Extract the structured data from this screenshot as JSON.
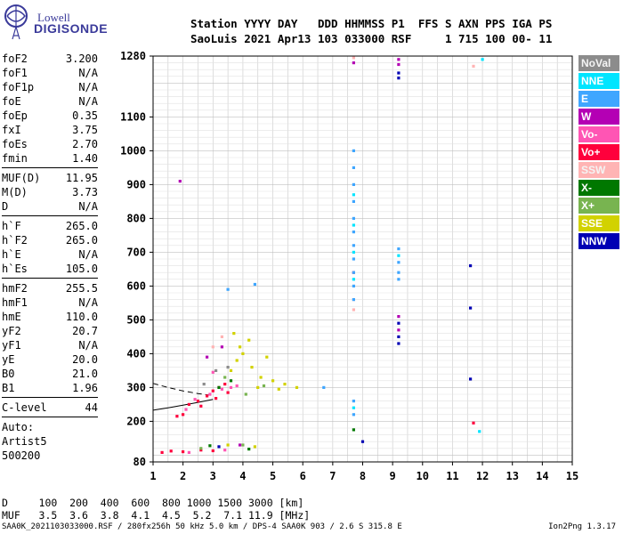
{
  "logo": {
    "line1": "Lowell",
    "line2": "DIGISONDE"
  },
  "header": {
    "line1": "Station YYYY DAY   DDD HHMMSS P1  FFS S AXN PPS IGA PS",
    "line2": "SaoLuis 2021 Apr13 103 033000 RSF     1 715 100 00- 11"
  },
  "params": {
    "group1": [
      {
        "name": "foF2",
        "value": "3.200"
      },
      {
        "name": "foF1",
        "value": "N/A"
      },
      {
        "name": "foF1p",
        "value": "N/A"
      },
      {
        "name": "foE",
        "value": "N/A"
      },
      {
        "name": "foEp",
        "value": "0.35"
      },
      {
        "name": "fxI",
        "value": "3.75"
      },
      {
        "name": "foEs",
        "value": "2.70"
      },
      {
        "name": "fmin",
        "value": "1.40"
      }
    ],
    "group2": [
      {
        "name": "MUF(D)",
        "value": "11.95"
      },
      {
        "name": "M(D)",
        "value": "3.73"
      },
      {
        "name": "D",
        "value": "N/A"
      }
    ],
    "group3": [
      {
        "name": "h`F",
        "value": "265.0"
      },
      {
        "name": "h`F2",
        "value": "265.0"
      },
      {
        "name": "h`E",
        "value": "N/A"
      },
      {
        "name": "h`Es",
        "value": "105.0"
      }
    ],
    "group4": [
      {
        "name": "hmF2",
        "value": "255.5"
      },
      {
        "name": "hmF1",
        "value": "N/A"
      },
      {
        "name": "hmE",
        "value": "110.0"
      },
      {
        "name": "yF2",
        "value": "20.7"
      },
      {
        "name": "yF1",
        "value": "N/A"
      },
      {
        "name": "yE",
        "value": "20.0"
      },
      {
        "name": "B0",
        "value": "21.0"
      },
      {
        "name": "B1",
        "value": "1.96"
      }
    ],
    "group5": [
      {
        "name": "C-level",
        "value": "44"
      }
    ],
    "auto": [
      "Auto:",
      "Artist5",
      "500200"
    ]
  },
  "legend": [
    {
      "label": "NoVal",
      "color": "#8c8c8c"
    },
    {
      "label": "NNE",
      "color": "#00e5ff"
    },
    {
      "label": "E",
      "color": "#3fa6ff"
    },
    {
      "label": "W",
      "color": "#b400b4"
    },
    {
      "label": "Vo-",
      "color": "#ff55b4"
    },
    {
      "label": "Vo+",
      "color": "#ff003c"
    },
    {
      "label": "SSW",
      "color": "#ffb4b4"
    },
    {
      "label": "X-",
      "color": "#007800"
    },
    {
      "label": "X+",
      "color": "#78b450"
    },
    {
      "label": "SSE",
      "color": "#d2d200"
    },
    {
      "label": "NNW",
      "color": "#0000b4"
    }
  ],
  "bottom": {
    "d_row": "D     100  200  400  600  800 1000 1500 3000 [km]",
    "muf_row": "MUF   3.5  3.6  3.8  4.1  4.5  5.2  7.1 11.9 [MHz]"
  },
  "footer": {
    "left": "SAA0K_2021103033000.RSF / 280fx256h 50 kHz 5.0 km / DPS-4 SAA0K 903 / 2.6 S 315.8 E",
    "right": "Ion2Png 1.3.17"
  },
  "chart_data": {
    "type": "scatter",
    "title": "",
    "xlabel": "",
    "ylabel": "",
    "x_range": [
      1,
      15
    ],
    "y_range": [
      80,
      1280
    ],
    "x_ticks": [
      1,
      2,
      3,
      4,
      5,
      6,
      7,
      8,
      9,
      10,
      11,
      12,
      13,
      14,
      15
    ],
    "y_ticks": [
      80,
      200,
      300,
      400,
      500,
      600,
      700,
      800,
      900,
      1000,
      1100,
      1280
    ],
    "grid": true,
    "legend_placement": "right",
    "series": [
      {
        "name": "Vo+",
        "color": "#ff003c",
        "points": [
          [
            2.2,
            250
          ],
          [
            2.5,
            260
          ],
          [
            2.8,
            275
          ],
          [
            3.0,
            290
          ],
          [
            3.2,
            300
          ],
          [
            3.4,
            310
          ],
          [
            2.0,
            220
          ],
          [
            1.8,
            215
          ],
          [
            2.6,
            245
          ],
          [
            3.1,
            268
          ],
          [
            3.5,
            285
          ],
          [
            1.6,
            112
          ],
          [
            2.0,
            110
          ],
          [
            2.6,
            115
          ],
          [
            3.0,
            113
          ],
          [
            1.3,
            108
          ],
          [
            11.7,
            195
          ],
          [
            7.7,
            640
          ]
        ]
      },
      {
        "name": "Vo-",
        "color": "#ff55b4",
        "points": [
          [
            2.4,
            265
          ],
          [
            2.9,
            280
          ],
          [
            3.3,
            295
          ],
          [
            3.6,
            300
          ],
          [
            3.8,
            305
          ],
          [
            2.1,
            235
          ],
          [
            3.0,
            345
          ],
          [
            2.2,
            108
          ],
          [
            3.4,
            115
          ]
        ]
      },
      {
        "name": "SSE",
        "color": "#d2d200",
        "points": [
          [
            3.6,
            350
          ],
          [
            3.8,
            380
          ],
          [
            4.0,
            400
          ],
          [
            4.3,
            360
          ],
          [
            4.6,
            330
          ],
          [
            5.0,
            320
          ],
          [
            5.4,
            310
          ],
          [
            5.8,
            300
          ],
          [
            4.8,
            390
          ],
          [
            3.9,
            420
          ],
          [
            4.2,
            440
          ],
          [
            3.7,
            460
          ],
          [
            4.5,
            300
          ],
          [
            5.2,
            295
          ],
          [
            3.5,
            130
          ],
          [
            4.4,
            125
          ]
        ]
      },
      {
        "name": "SSW",
        "color": "#ffb4b4",
        "points": [
          [
            7.7,
            530
          ],
          [
            7.7,
            560
          ],
          [
            3.0,
            420
          ],
          [
            3.3,
            450
          ],
          [
            7.7,
            1275
          ],
          [
            11.7,
            1250
          ]
        ]
      },
      {
        "name": "E",
        "color": "#3fa6ff",
        "points": [
          [
            7.7,
            1000
          ],
          [
            7.7,
            950
          ],
          [
            7.7,
            900
          ],
          [
            7.7,
            850
          ],
          [
            7.7,
            800
          ],
          [
            7.7,
            760
          ],
          [
            7.7,
            720
          ],
          [
            7.7,
            680
          ],
          [
            7.7,
            640
          ],
          [
            7.7,
            600
          ],
          [
            7.7,
            560
          ],
          [
            7.7,
            260
          ],
          [
            7.7,
            220
          ],
          [
            9.2,
            710
          ],
          [
            9.2,
            670
          ],
          [
            9.2,
            640
          ],
          [
            9.2,
            620
          ],
          [
            3.5,
            590
          ],
          [
            4.4,
            605
          ],
          [
            6.7,
            300
          ]
        ]
      },
      {
        "name": "NNE",
        "color": "#00e5ff",
        "points": [
          [
            7.7,
            870
          ],
          [
            7.7,
            780
          ],
          [
            7.7,
            700
          ],
          [
            7.7,
            620
          ],
          [
            7.7,
            240
          ],
          [
            9.2,
            690
          ],
          [
            11.9,
            170
          ],
          [
            12.0,
            1270
          ]
        ]
      },
      {
        "name": "W",
        "color": "#b400b4",
        "points": [
          [
            9.2,
            1270
          ],
          [
            9.2,
            1255
          ],
          [
            9.2,
            510
          ],
          [
            9.2,
            470
          ],
          [
            3.3,
            420
          ],
          [
            2.8,
            390
          ],
          [
            3.9,
            130
          ],
          [
            1.9,
            910
          ],
          [
            7.7,
            1260
          ]
        ]
      },
      {
        "name": "NNW",
        "color": "#0000b4",
        "points": [
          [
            9.2,
            1230
          ],
          [
            9.2,
            1215
          ],
          [
            9.2,
            490
          ],
          [
            9.2,
            450
          ],
          [
            9.2,
            430
          ],
          [
            11.6,
            660
          ],
          [
            11.6,
            535
          ],
          [
            11.6,
            325
          ],
          [
            3.2,
            125
          ],
          [
            8.0,
            140
          ]
        ]
      },
      {
        "name": "X-",
        "color": "#007800",
        "points": [
          [
            7.7,
            175
          ],
          [
            3.6,
            320
          ],
          [
            3.2,
            300
          ],
          [
            2.9,
            128
          ],
          [
            4.2,
            118
          ]
        ]
      },
      {
        "name": "X+",
        "color": "#78b450",
        "points": [
          [
            4.1,
            280
          ],
          [
            3.4,
            330
          ],
          [
            4.7,
            305
          ],
          [
            2.6,
            120
          ],
          [
            4.0,
            130
          ]
        ]
      },
      {
        "name": "NoVal",
        "color": "#8c8c8c",
        "points": [
          [
            3.1,
            350
          ],
          [
            2.7,
            310
          ],
          [
            3.5,
            360
          ]
        ]
      }
    ],
    "traced_curves": [
      {
        "name": "virtual-height trace",
        "style": "solid",
        "points": [
          [
            1.0,
            233
          ],
          [
            1.5,
            240
          ],
          [
            2.0,
            248
          ],
          [
            2.5,
            256
          ],
          [
            3.0,
            265
          ]
        ]
      },
      {
        "name": "profile trace",
        "style": "dashed",
        "points": [
          [
            1.0,
            312
          ],
          [
            1.5,
            300
          ],
          [
            2.0,
            290
          ],
          [
            2.5,
            282
          ],
          [
            3.0,
            276
          ]
        ]
      }
    ]
  }
}
